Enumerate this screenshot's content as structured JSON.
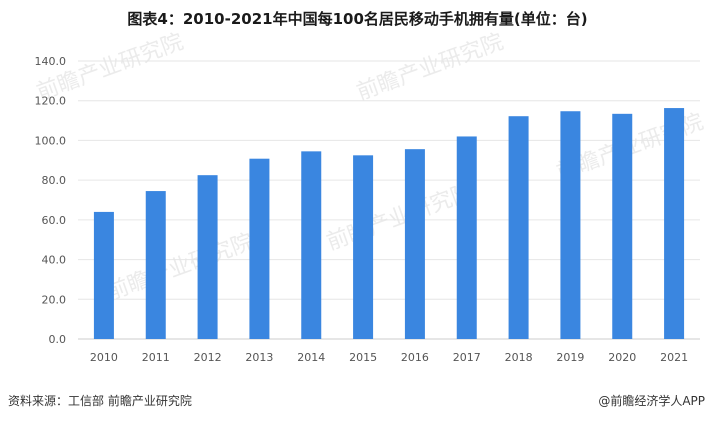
{
  "title": "图表4：2010-2021年中国每100名居民移动手机拥有量(单位：台)",
  "source": "资料来源：工信部 前瞻产业研究院",
  "brand": "@前瞻经济学人APP",
  "colors": {
    "bar": "#3a86e0",
    "grid": "#e6e6e6",
    "axis": "#cccccc"
  },
  "chart_data": {
    "type": "bar",
    "categories": [
      "2010",
      "2011",
      "2012",
      "2013",
      "2014",
      "2015",
      "2016",
      "2017",
      "2018",
      "2019",
      "2020",
      "2021"
    ],
    "values": [
      64.0,
      74.5,
      82.5,
      90.8,
      94.5,
      92.5,
      95.6,
      102.0,
      112.2,
      114.7,
      113.4,
      116.3
    ],
    "ylim": [
      0,
      140
    ],
    "yticks": [
      "0.0",
      "20.0",
      "40.0",
      "60.0",
      "80.0",
      "100.0",
      "120.0",
      "140.0"
    ],
    "xlabel": "",
    "ylabel": "",
    "grid": true
  },
  "watermark": "前瞻产业研究院"
}
